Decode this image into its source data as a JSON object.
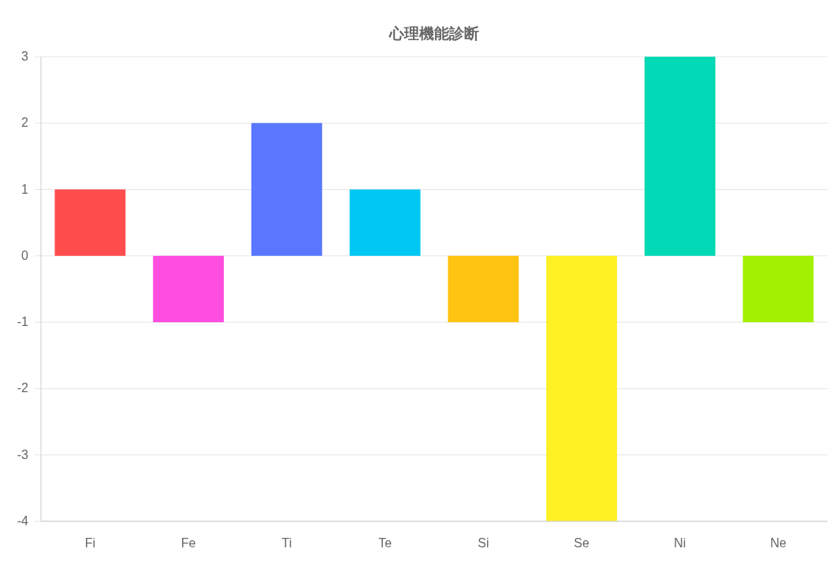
{
  "chart_data": {
    "type": "bar",
    "title": "心理機能診断",
    "categories": [
      "Fi",
      "Fe",
      "Ti",
      "Te",
      "Si",
      "Se",
      "Ni",
      "Ne"
    ],
    "values": [
      1,
      -1,
      2,
      1,
      -1,
      -4,
      3,
      -1
    ],
    "colors": [
      "#ff4d4d",
      "#ff4de0",
      "#5a78ff",
      "#00c8f2",
      "#ffc312",
      "#fff024",
      "#00d8b6",
      "#a3f000"
    ],
    "ylim": [
      -4,
      3
    ],
    "yticks": [
      -4,
      -3,
      -2,
      -1,
      0,
      1,
      2,
      3
    ],
    "grid": "y"
  }
}
